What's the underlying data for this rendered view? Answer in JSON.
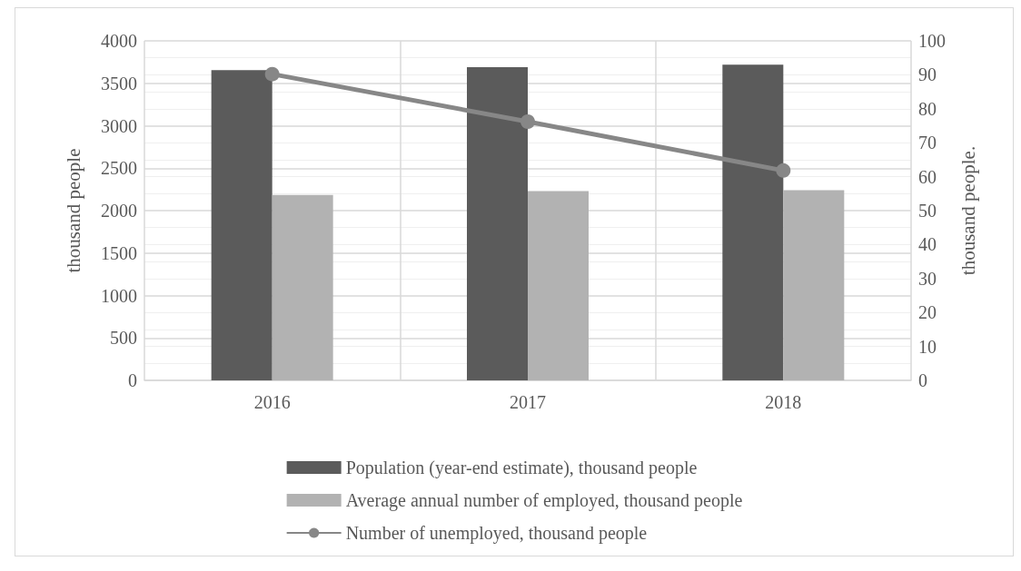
{
  "chart_data": {
    "type": "bar",
    "categories": [
      "2016",
      "2017",
      "2018"
    ],
    "series": [
      {
        "name": "Population (year-end estimate), thousand people",
        "color": "#5b5b5b",
        "values": [
          3655,
          3690,
          3720
        ]
      },
      {
        "name": "Average annual number of employed, thousand people",
        "color": "#b2b2b2",
        "values": [
          2185,
          2230,
          2240
        ]
      },
      {
        "name": "Number of unemployed, thousand people",
        "type": "line",
        "axis": "y2",
        "color": "#878787",
        "marker": "circle",
        "values": [
          90.2,
          76.2,
          61.8
        ]
      }
    ],
    "ylabel": "thousand people",
    "y2label": "thousand people.",
    "ylim": [
      0,
      4000
    ],
    "yticks": [
      0,
      500,
      1000,
      1500,
      2000,
      2500,
      3000,
      3500,
      4000
    ],
    "y2lim": [
      0,
      100
    ],
    "y2ticks": [
      0,
      10,
      20,
      30,
      40,
      50,
      60,
      70,
      80,
      90,
      100
    ],
    "grid": true,
    "legend": "bottom"
  }
}
